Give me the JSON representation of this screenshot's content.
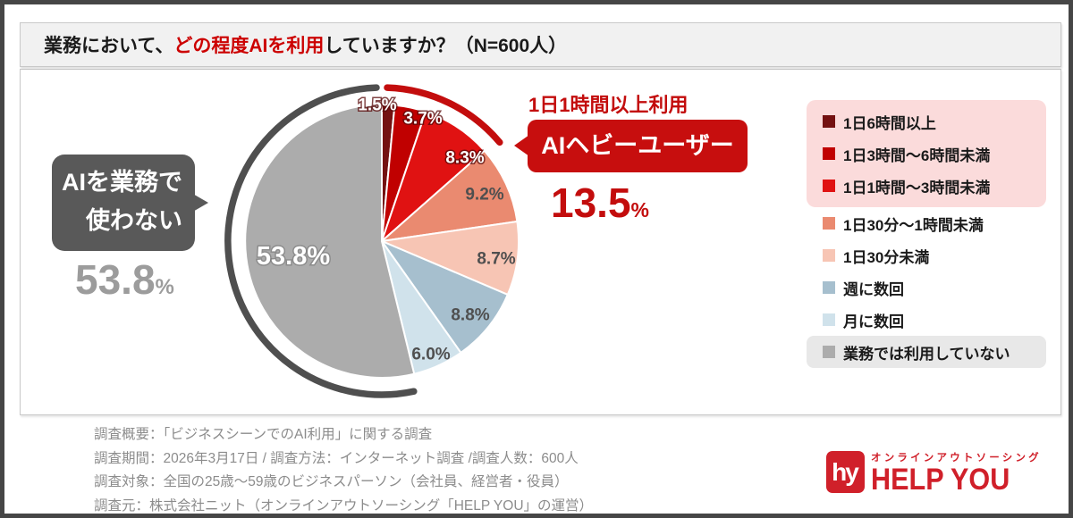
{
  "title": {
    "prefix": "業務において、",
    "highlight": "どの程度AIを利用",
    "suffix": "していますか？（N=600人）"
  },
  "chart_data": {
    "type": "pie",
    "title": "業務において、どの程度AIを利用していますか？（N=600人）",
    "n": 600,
    "unit": "%",
    "start_angle_deg": 0,
    "direction": "clockwise",
    "categories": [
      "1日6時間以上",
      "1日3時間〜6時間未満",
      "1日1時間〜3時間未満",
      "1日30分〜1時間未満",
      "1日30分未満",
      "週に数回",
      "月に数回",
      "業務では利用していない"
    ],
    "values": [
      1.5,
      3.7,
      8.3,
      9.2,
      8.7,
      8.8,
      6.0,
      53.8
    ],
    "colors": [
      "#741111",
      "#C00000",
      "#E01212",
      "#EA8A70",
      "#F7C5B4",
      "#A6BFCE",
      "#D0E2EB",
      "#ACACAC"
    ],
    "legend_position": "right",
    "highlight_groups": [
      {
        "name": "AIヘビーユーザー",
        "indices": [
          0,
          1,
          2
        ],
        "total": 13.5,
        "background": "#FBDBDB",
        "arc_color": "#C30D0D"
      },
      {
        "name": "業務では利用していない",
        "indices": [
          7
        ],
        "total": 53.8,
        "background": "#E8E8E8",
        "arc_color": "#4F4F4F"
      }
    ]
  },
  "callout_left": {
    "line1": "AIを業務で",
    "line2": "使わない",
    "value": "53.8",
    "unit": "%"
  },
  "callout_right": {
    "label": "1日1時間以上利用",
    "badge": "AIヘビーユーザー",
    "value": "13.5",
    "unit": "%"
  },
  "footer": {
    "lines": [
      "調査概要：「ビジネスシーンでのAI利用」に関する調査",
      "調査期間：2026年3月17日 / 調査方法：インターネット調査 /調査人数：600人",
      "調査対象：全国の25歳〜59歳のビジネスパーソン（会社員、経営者・役員）",
      "調査元：株式会社ニット（オンラインアウトソーシング「HELP YOU」の運営）"
    ]
  },
  "logo": {
    "monogram": "hy",
    "tagline": "オンラインアウトソーシング",
    "name": "HELP YOU",
    "color": "#D0202A"
  }
}
